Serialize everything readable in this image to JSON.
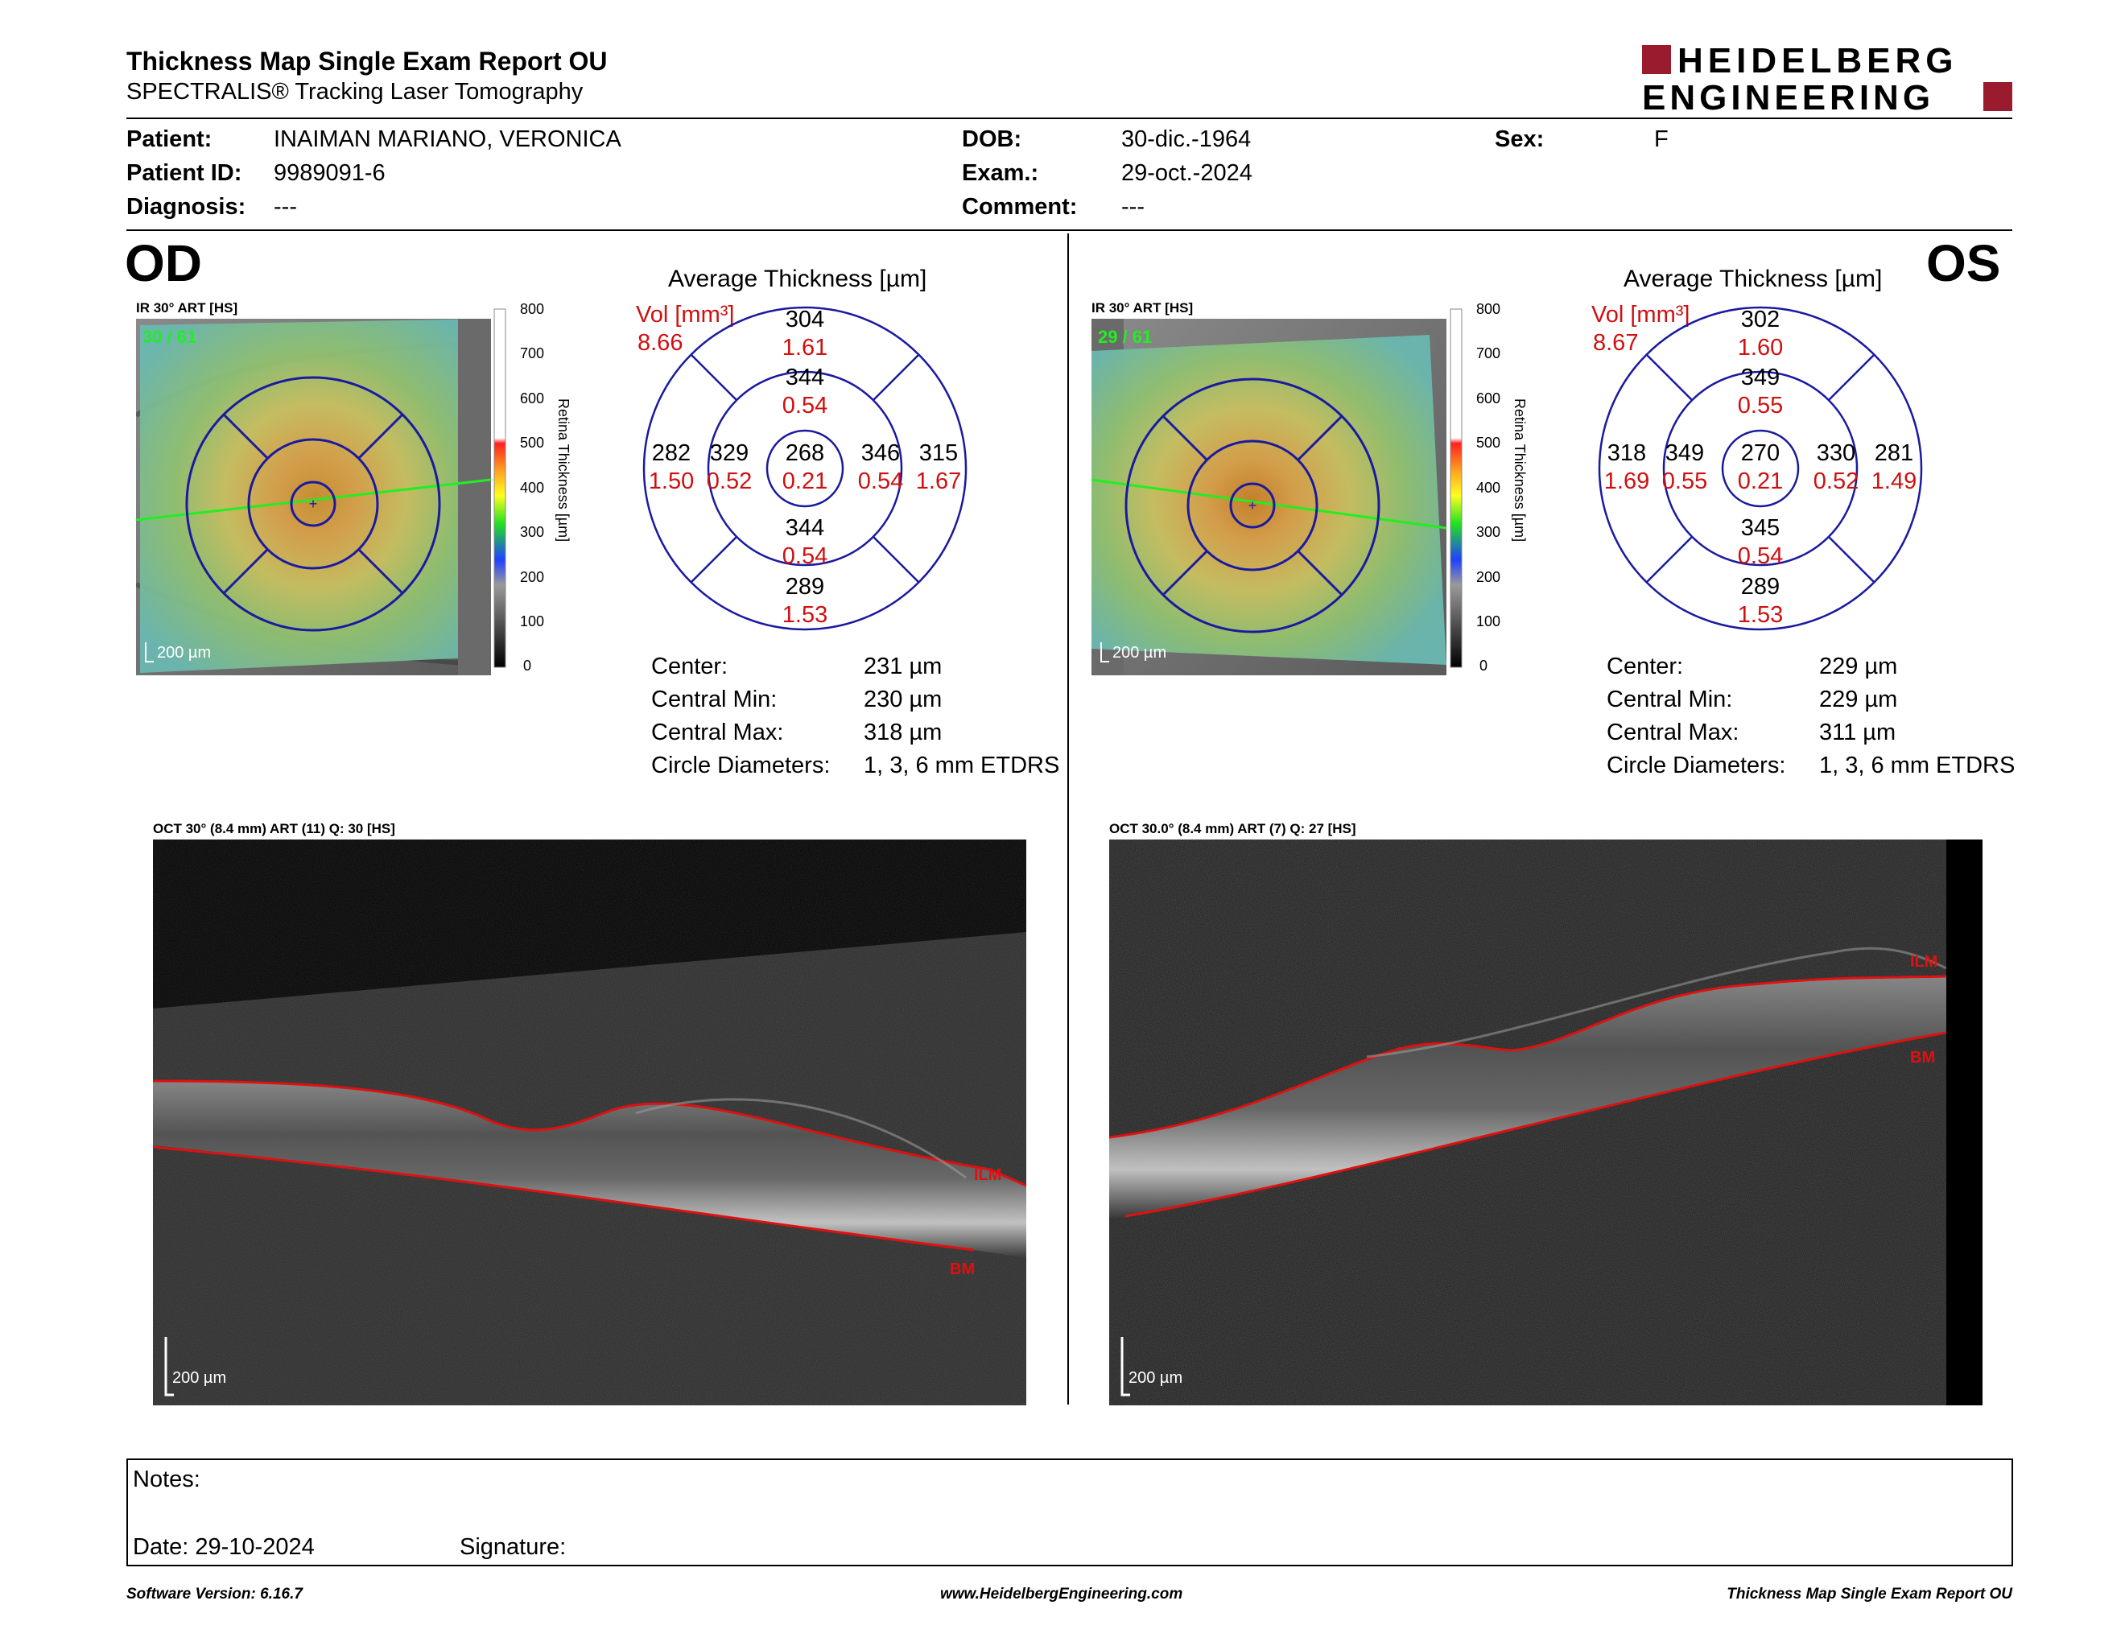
{
  "header": {
    "title": "Thickness Map Single Exam Report OU",
    "subtitle": "SPECTRALIS® Tracking Laser Tomography",
    "logo_line1": "HEIDELBERG",
    "logo_line2": "ENGINEERING"
  },
  "patient": {
    "patient_label": "Patient:",
    "patient_value": "INAIMAN MARIANO, VERONICA",
    "id_label": "Patient ID:",
    "id_value": "9989091-6",
    "diagnosis_label": "Diagnosis:",
    "diagnosis_value": "---",
    "dob_label": "DOB:",
    "dob_value": "30-dic.-1964",
    "exam_label": "Exam.:",
    "exam_value": "29-oct.-2024",
    "comment_label": "Comment:",
    "comment_value": "---",
    "sex_label": "Sex:",
    "sex_value": "F"
  },
  "colorbar": {
    "ticks": [
      "800",
      "700",
      "600",
      "500",
      "400",
      "300",
      "200",
      "100",
      "0"
    ],
    "label": "Retina Thickness [µm]"
  },
  "od": {
    "eye_label": "OD",
    "ir_caption": "IR 30° ART [HS]",
    "frames": "30 / 61",
    "scale": "200 µm",
    "avg_title": "Average Thickness [µm]",
    "vol_label": "Vol [mm³]",
    "vol_value": "8.66",
    "etdrs": {
      "center_t": "268",
      "center_v": "0.21",
      "inner_sup_t": "344",
      "inner_sup_v": "0.54",
      "inner_inf_t": "344",
      "inner_inf_v": "0.54",
      "inner_left_t": "329",
      "inner_left_v": "0.52",
      "inner_right_t": "346",
      "inner_right_v": "0.54",
      "outer_sup_t": "304",
      "outer_sup_v": "1.61",
      "outer_inf_t": "289",
      "outer_inf_v": "1.53",
      "outer_left_t": "282",
      "outer_left_v": "1.50",
      "outer_right_t": "315",
      "outer_right_v": "1.67"
    },
    "stats": {
      "center_label": "Center:",
      "center_value": "231 µm",
      "min_label": "Central Min:",
      "min_value": "230 µm",
      "max_label": "Central Max:",
      "max_value": "318 µm",
      "diam_label": "Circle Diameters:",
      "diam_value": "1, 3, 6 mm ETDRS"
    },
    "oct_caption": "OCT 30° (8.4 mm) ART (11) Q: 30 [HS]",
    "oct_scale": "200 µm",
    "ilm": "ILM",
    "bm": "BM"
  },
  "os": {
    "eye_label": "OS",
    "ir_caption": "IR 30° ART [HS]",
    "frames": "29 / 61",
    "scale": "200 µm",
    "avg_title": "Average Thickness [µm]",
    "vol_label": "Vol [mm³]",
    "vol_value": "8.67",
    "etdrs": {
      "center_t": "270",
      "center_v": "0.21",
      "inner_sup_t": "349",
      "inner_sup_v": "0.55",
      "inner_inf_t": "345",
      "inner_inf_v": "0.54",
      "inner_left_t": "349",
      "inner_left_v": "0.55",
      "inner_right_t": "330",
      "inner_right_v": "0.52",
      "outer_sup_t": "302",
      "outer_sup_v": "1.60",
      "outer_inf_t": "289",
      "outer_inf_v": "1.53",
      "outer_left_t": "318",
      "outer_left_v": "1.69",
      "outer_right_t": "281",
      "outer_right_v": "1.49"
    },
    "stats": {
      "center_label": "Center:",
      "center_value": "229 µm",
      "min_label": "Central Min:",
      "min_value": "229 µm",
      "max_label": "Central Max:",
      "max_value": "311 µm",
      "diam_label": "Circle Diameters:",
      "diam_value": "1, 3, 6 mm ETDRS"
    },
    "oct_caption": "OCT 30.0° (8.4 mm) ART (7) Q: 27 [HS]",
    "oct_scale": "200 µm",
    "ilm": "ILM",
    "bm": "BM"
  },
  "notes": {
    "notes_label": "Notes:",
    "date_label": "Date: 29-10-2024",
    "signature_label": "Signature:"
  },
  "footer": {
    "software": "Software Version: 6.16.7",
    "website": "www.HeidelbergEngineering.com",
    "report": "Thickness Map Single Exam Report OU"
  },
  "colors": {
    "etdrs_ring": "#1a1aa0",
    "volume_red": "#d01010",
    "segment_red": "#e01010",
    "logo_red": "#9b1b2e"
  }
}
